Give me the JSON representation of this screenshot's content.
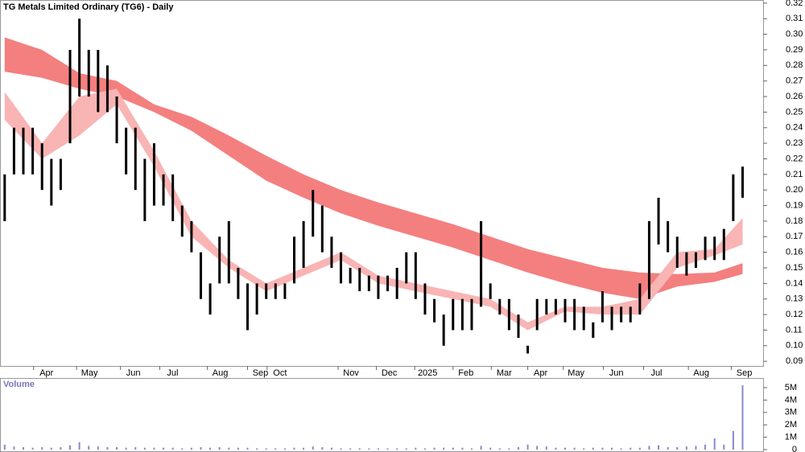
{
  "chart_data": [
    {
      "type": "range",
      "title": "TG Metals Limited Ordinary (TG6) - Daily",
      "xlim": [
        -0.5,
        81.2
      ],
      "xticks": [
        {
          "value": 3.1,
          "label": "Apr"
        },
        {
          "value": 7.7,
          "label": "May"
        },
        {
          "value": 12.4,
          "label": "Jun"
        },
        {
          "value": 16.6,
          "label": "Jul"
        },
        {
          "value": 21.7,
          "label": "Aug"
        },
        {
          "value": 26.0,
          "label": "Sep"
        },
        {
          "value": 28.1,
          "label": "Oct"
        },
        {
          "value": 35.7,
          "label": "Nov"
        },
        {
          "value": 39.8,
          "label": "Dec"
        },
        {
          "value": 43.9,
          "label": "2025"
        },
        {
          "value": 48.0,
          "label": "Feb"
        },
        {
          "value": 52.1,
          "label": "Mar"
        },
        {
          "value": 56.0,
          "label": "Apr"
        },
        {
          "value": 59.8,
          "label": "May"
        },
        {
          "value": 64.1,
          "label": "Jun"
        },
        {
          "value": 68.4,
          "label": "Jul"
        },
        {
          "value": 73.2,
          "label": "Aug"
        },
        {
          "value": 77.8,
          "label": "Sep"
        }
      ],
      "ylim": [
        0.087,
        0.322
      ],
      "yticks": [
        0.09,
        {
          "value": 0.1,
          "label": "0.10"
        },
        0.11,
        0.12,
        0.13,
        0.14,
        0.15,
        0.16,
        0.17,
        0.18,
        0.19,
        {
          "value": 0.2,
          "label": "0.20"
        },
        0.21,
        0.22,
        0.23,
        0.24,
        0.25,
        0.26,
        0.27,
        0.28,
        0.29,
        {
          "value": 0.3,
          "label": "0.30"
        },
        0.31,
        0.32
      ],
      "color": "#000000",
      "high": [
        0.21,
        0.24,
        0.24,
        0.24,
        0.23,
        0.22,
        0.22,
        0.29,
        0.31,
        0.29,
        0.29,
        0.28,
        0.26,
        0.24,
        0.24,
        0.22,
        0.23,
        0.21,
        0.21,
        0.19,
        0.18,
        0.16,
        0.14,
        0.17,
        0.18,
        0.15,
        0.14,
        0.14,
        0.14,
        0.14,
        0.14,
        0.17,
        0.18,
        0.2,
        0.19,
        0.17,
        0.16,
        0.15,
        0.15,
        0.145,
        0.145,
        0.145,
        0.15,
        0.16,
        0.16,
        0.14,
        0.13,
        0.12,
        0.13,
        0.13,
        0.13,
        0.18,
        0.14,
        0.13,
        0.13,
        0.12,
        0.1,
        0.13,
        0.13,
        0.13,
        0.13,
        0.13,
        0.125,
        0.115,
        0.135,
        0.125,
        0.125,
        0.125,
        0.14,
        0.18,
        0.195,
        0.18,
        0.17,
        0.16,
        0.16,
        0.17,
        0.17,
        0.175,
        0.21,
        0.215
      ],
      "low": [
        0.18,
        0.21,
        0.21,
        0.21,
        0.2,
        0.19,
        0.2,
        0.23,
        0.26,
        0.26,
        0.25,
        0.25,
        0.23,
        0.21,
        0.2,
        0.18,
        0.19,
        0.19,
        0.18,
        0.17,
        0.16,
        0.13,
        0.12,
        0.14,
        0.14,
        0.13,
        0.11,
        0.12,
        0.13,
        0.13,
        0.13,
        0.14,
        0.15,
        0.17,
        0.16,
        0.15,
        0.14,
        0.14,
        0.135,
        0.135,
        0.13,
        0.135,
        0.13,
        0.14,
        0.13,
        0.12,
        0.115,
        0.1,
        0.11,
        0.11,
        0.11,
        0.125,
        0.13,
        0.12,
        0.11,
        0.105,
        0.095,
        0.11,
        0.12,
        0.12,
        0.115,
        0.11,
        0.11,
        0.105,
        0.115,
        0.11,
        0.115,
        0.115,
        0.12,
        0.13,
        0.165,
        0.16,
        0.15,
        0.145,
        0.15,
        0.155,
        0.155,
        0.155,
        0.18,
        0.195
      ],
      "bands": [
        {
          "color": "#f47f7f",
          "x": [
            0,
            4,
            8,
            12,
            16,
            20,
            24,
            28,
            32,
            36,
            40,
            44,
            48,
            52,
            56,
            60,
            64,
            68,
            72,
            76,
            79
          ],
          "upper": [
            0.298,
            0.29,
            0.275,
            0.27,
            0.255,
            0.247,
            0.235,
            0.222,
            0.21,
            0.2,
            0.192,
            0.185,
            0.178,
            0.17,
            0.162,
            0.156,
            0.15,
            0.147,
            0.146,
            0.147,
            0.153
          ],
          "lower": [
            0.276,
            0.272,
            0.265,
            0.26,
            0.25,
            0.238,
            0.222,
            0.206,
            0.195,
            0.185,
            0.177,
            0.17,
            0.163,
            0.155,
            0.147,
            0.14,
            0.134,
            0.13,
            0.138,
            0.141,
            0.146
          ]
        },
        {
          "color": "#f9b4b4",
          "x": [
            0,
            4,
            8,
            12,
            16,
            20,
            24,
            28,
            32,
            36,
            40,
            44,
            48,
            52,
            56,
            60,
            64,
            68,
            72,
            76,
            79
          ],
          "upper": [
            0.263,
            0.23,
            0.26,
            0.265,
            0.225,
            0.18,
            0.155,
            0.14,
            0.15,
            0.16,
            0.145,
            0.14,
            0.135,
            0.13,
            0.115,
            0.125,
            0.125,
            0.13,
            0.16,
            0.162,
            0.182
          ],
          "lower": [
            0.245,
            0.22,
            0.235,
            0.255,
            0.215,
            0.17,
            0.15,
            0.135,
            0.145,
            0.155,
            0.14,
            0.135,
            0.13,
            0.125,
            0.11,
            0.122,
            0.12,
            0.12,
            0.15,
            0.158,
            0.165
          ]
        }
      ]
    },
    {
      "type": "bar",
      "title": "Volume",
      "xlim": [
        -0.5,
        81.2
      ],
      "ylim": [
        0,
        5780000
      ],
      "color": "#8888cc",
      "yticks": [
        0,
        {
          "value": 1000000,
          "label": "1M"
        },
        {
          "value": 2000000,
          "label": "2M"
        },
        {
          "value": 3000000,
          "label": "3M"
        },
        {
          "value": 4000000,
          "label": "4M"
        },
        {
          "value": 5000000,
          "label": "5M"
        }
      ],
      "values": [
        400000,
        250000,
        200000,
        150000,
        200000,
        150000,
        200000,
        350000,
        600000,
        300000,
        250000,
        200000,
        200000,
        150000,
        200000,
        150000,
        150000,
        150000,
        150000,
        100000,
        150000,
        200000,
        150000,
        200000,
        150000,
        150000,
        150000,
        100000,
        100000,
        100000,
        100000,
        150000,
        150000,
        250000,
        200000,
        150000,
        100000,
        100000,
        100000,
        100000,
        100000,
        100000,
        100000,
        100000,
        150000,
        100000,
        150000,
        150000,
        150000,
        150000,
        100000,
        300000,
        150000,
        100000,
        100000,
        200000,
        400000,
        300000,
        250000,
        150000,
        150000,
        150000,
        100000,
        150000,
        150000,
        150000,
        100000,
        150000,
        150000,
        300000,
        350000,
        200000,
        200000,
        250000,
        300000,
        400000,
        900000,
        400000,
        1500000,
        5200000
      ]
    }
  ]
}
